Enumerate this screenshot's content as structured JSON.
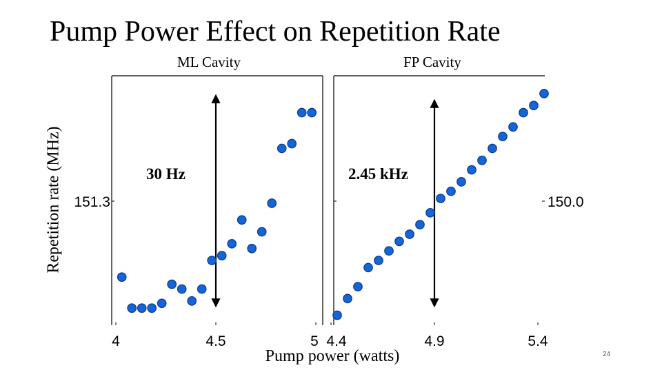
{
  "slide": {
    "title": "Pump Power Effect on Repetition Rate",
    "page_number": "24",
    "ylabel": "Repetition rate (MHz)",
    "xlabel": "Pump power (watts)"
  },
  "colors": {
    "marker_fill": "#1565d8",
    "marker_edge": "#0a3d8f",
    "arrow": "#000000"
  },
  "chart_data": [
    {
      "type": "scatter",
      "title": "ML Cavity",
      "xlim": [
        4,
        5
      ],
      "x_ticks": [
        "4",
        "4.5",
        "5"
      ],
      "x_tick_values": [
        4,
        4.5,
        5
      ],
      "y_tick_label": "151.3",
      "ylim": [
        0,
        100
      ],
      "annotation": "30 Hz",
      "arrow": {
        "x": 4.5,
        "y_from": 7,
        "y_to": 95
      },
      "points": [
        {
          "x": 4.03,
          "y": 19
        },
        {
          "x": 4.08,
          "y": 6
        },
        {
          "x": 4.13,
          "y": 6
        },
        {
          "x": 4.18,
          "y": 6
        },
        {
          "x": 4.23,
          "y": 8
        },
        {
          "x": 4.28,
          "y": 16
        },
        {
          "x": 4.33,
          "y": 14
        },
        {
          "x": 4.38,
          "y": 9
        },
        {
          "x": 4.43,
          "y": 14
        },
        {
          "x": 4.48,
          "y": 26
        },
        {
          "x": 4.53,
          "y": 28
        },
        {
          "x": 4.58,
          "y": 33
        },
        {
          "x": 4.63,
          "y": 43
        },
        {
          "x": 4.68,
          "y": 31
        },
        {
          "x": 4.73,
          "y": 38
        },
        {
          "x": 4.78,
          "y": 50
        },
        {
          "x": 4.83,
          "y": 73
        },
        {
          "x": 4.88,
          "y": 75
        },
        {
          "x": 4.93,
          "y": 88
        },
        {
          "x": 4.98,
          "y": 88
        }
      ]
    },
    {
      "type": "scatter",
      "title": "FP Cavity",
      "xlim": [
        4.4,
        5.4
      ],
      "x_ticks": [
        "4.4",
        "4.9",
        "5.4"
      ],
      "x_tick_values": [
        4.4,
        4.9,
        5.4
      ],
      "y_tick_label": "150.0",
      "ylim": [
        0,
        100
      ],
      "annotation": "2.45 kHz",
      "arrow": {
        "x": 4.9,
        "y_from": 7,
        "y_to": 93
      },
      "points": [
        {
          "x": 4.43,
          "y": 3
        },
        {
          "x": 4.48,
          "y": 10
        },
        {
          "x": 4.53,
          "y": 15
        },
        {
          "x": 4.58,
          "y": 23
        },
        {
          "x": 4.63,
          "y": 26
        },
        {
          "x": 4.68,
          "y": 30
        },
        {
          "x": 4.73,
          "y": 34
        },
        {
          "x": 4.78,
          "y": 37
        },
        {
          "x": 4.83,
          "y": 41
        },
        {
          "x": 4.88,
          "y": 46
        },
        {
          "x": 4.93,
          "y": 52
        },
        {
          "x": 4.98,
          "y": 55
        },
        {
          "x": 5.03,
          "y": 59
        },
        {
          "x": 5.08,
          "y": 64
        },
        {
          "x": 5.13,
          "y": 68
        },
        {
          "x": 5.18,
          "y": 73
        },
        {
          "x": 5.23,
          "y": 78
        },
        {
          "x": 5.28,
          "y": 82
        },
        {
          "x": 5.33,
          "y": 88
        },
        {
          "x": 5.38,
          "y": 91
        },
        {
          "x": 5.43,
          "y": 96
        }
      ]
    }
  ]
}
